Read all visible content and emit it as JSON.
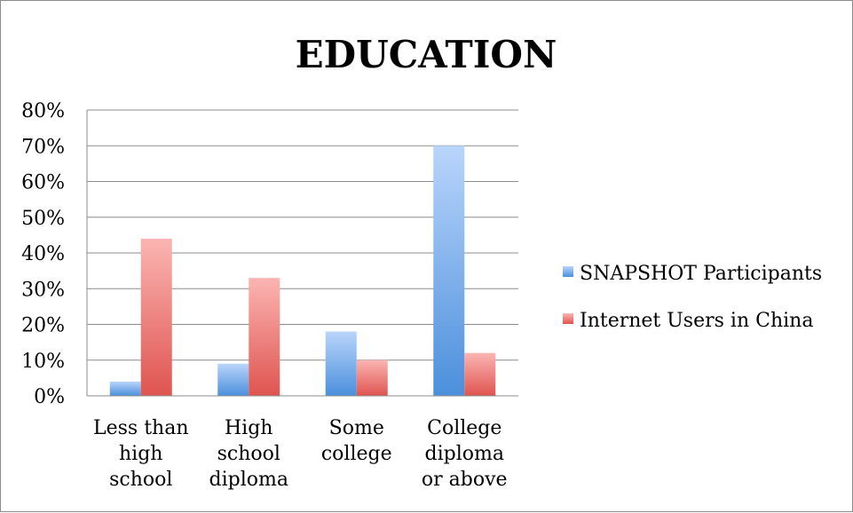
{
  "chart_data": {
    "type": "bar",
    "title": "EDUCATION",
    "categories": [
      [
        "Less than",
        "high",
        "school"
      ],
      [
        "High",
        "school",
        "diploma"
      ],
      [
        "Some",
        "college"
      ],
      [
        "College",
        "diploma",
        "or above"
      ]
    ],
    "series": [
      {
        "name": "SNAPSHOT Participants",
        "values": [
          4,
          9,
          18,
          70
        ],
        "color": "#5b9bd5"
      },
      {
        "name": "Internet Users in China",
        "values": [
          44,
          33,
          10,
          12
        ],
        "color": "#e8625f"
      }
    ],
    "ylim": [
      0,
      80
    ],
    "yticks": [
      "0%",
      "10%",
      "20%",
      "30%",
      "40%",
      "50%",
      "60%",
      "70%",
      "80%"
    ],
    "grid": true,
    "legend_position": "right"
  }
}
